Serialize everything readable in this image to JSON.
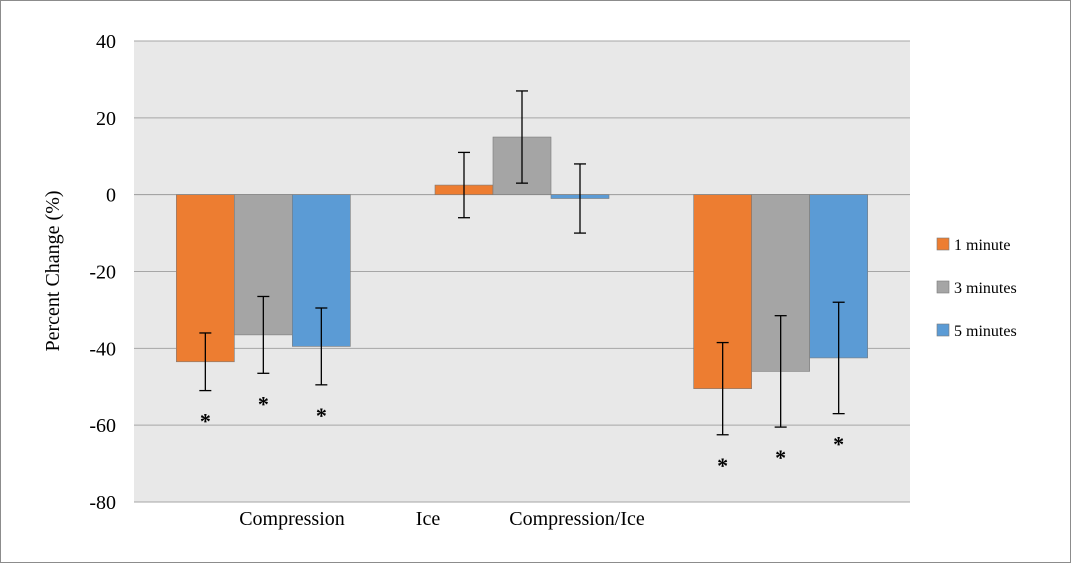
{
  "chart_data": {
    "type": "bar",
    "title": "",
    "xlabel": "",
    "ylabel": "Percent Change (%)",
    "ylim": [
      -80,
      40
    ],
    "yticks": [
      40,
      20,
      0,
      -20,
      -40,
      -60,
      -80
    ],
    "categories": [
      "Compression",
      "Ice",
      "Compression/Ice"
    ],
    "series": [
      {
        "name": "1 minute",
        "color": "#ED7D31",
        "values": [
          -43.5,
          2.5,
          -50.5
        ],
        "errors": [
          7.5,
          8.5,
          12
        ],
        "significant": [
          true,
          false,
          true
        ]
      },
      {
        "name": "3 minutes",
        "color": "#A5A5A5",
        "values": [
          -36.5,
          15,
          -46
        ],
        "errors": [
          10,
          12,
          14.5
        ],
        "significant": [
          true,
          false,
          true
        ]
      },
      {
        "name": "5 minutes",
        "color": "#5B9BD5",
        "values": [
          -39.5,
          -1,
          -42.5
        ],
        "errors": [
          10,
          9,
          14.5
        ],
        "significant": [
          true,
          false,
          true
        ]
      }
    ],
    "significance_marker": "*",
    "grid": true,
    "legend": "right"
  }
}
